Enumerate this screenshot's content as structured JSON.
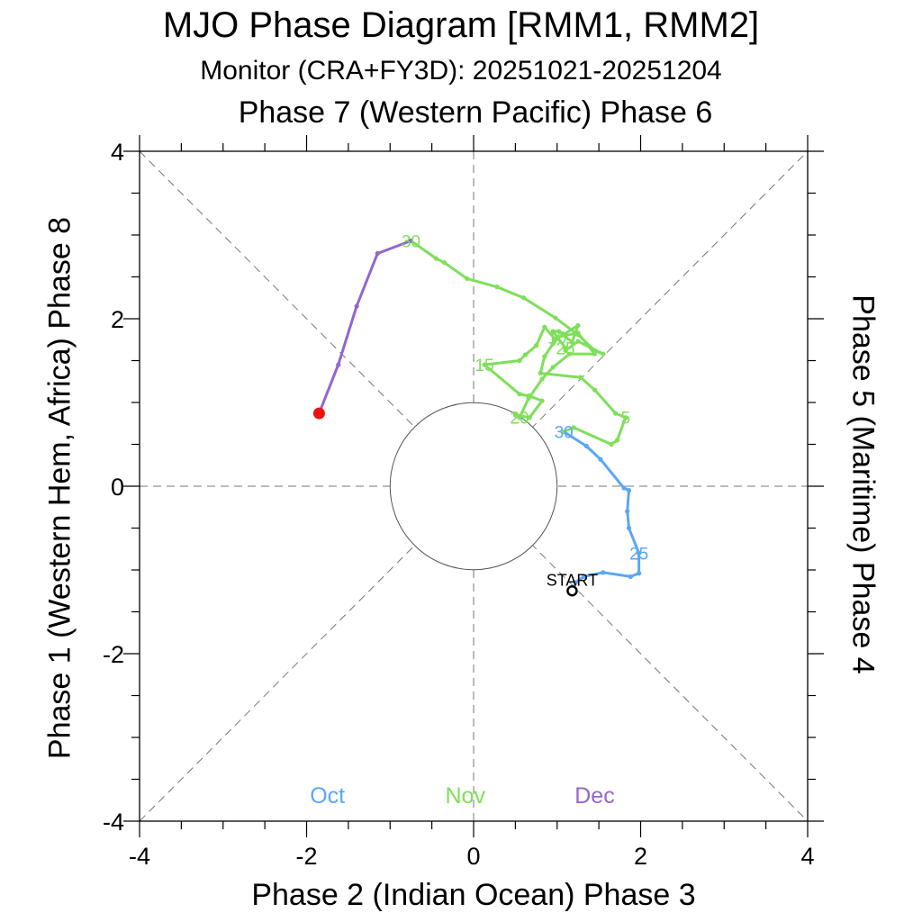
{
  "chart_data": {
    "type": "line",
    "title": "MJO Phase Diagram [RMM1, RMM2]",
    "subtitle": "Monitor (CRA+FY3D): 20251021-20251204",
    "top_label": "Phase 7 (Western Pacific) Phase 6",
    "xlabel": "Phase 2 (Indian Ocean) Phase 3",
    "ylabel_left": "Phase 1 (Western Hem, Africa) Phase 8",
    "ylabel_right": "Phase 5 (Maritime) Phase 4",
    "xlim": [
      -4,
      4
    ],
    "ylim": [
      -4,
      4
    ],
    "xticks": [
      -4,
      -2,
      0,
      2,
      4
    ],
    "yticks": [
      -4,
      -2,
      0,
      2,
      4
    ],
    "xtick_labels": [
      "-4",
      "-2",
      "0",
      "2",
      "4"
    ],
    "ytick_labels": [
      "-4",
      "-2",
      "0",
      "2",
      "4"
    ],
    "unit_circle_radius": 1,
    "start_label": "START",
    "colors": {
      "Oct": "#5aa7f5",
      "Nov": "#7fdf5a",
      "Dec": "#9266cf",
      "end_marker": "#ee1111",
      "axes": "#000000",
      "guides": "#777777"
    },
    "series": [
      {
        "name": "Oct",
        "x": [
          1.18,
          1.22,
          1.32,
          1.55,
          1.88,
          1.98,
          1.98,
          1.86,
          1.84,
          1.86,
          1.8,
          1.52,
          1.35,
          1.08
        ],
        "y": [
          -1.25,
          -1.15,
          -1.08,
          -1.03,
          -1.08,
          -1.04,
          -0.8,
          -0.5,
          -0.3,
          -0.05,
          -0.02,
          0.32,
          0.48,
          0.65
        ],
        "labels": [
          {
            "text": "25",
            "index": 6
          },
          {
            "text": "30",
            "index": 13
          }
        ]
      },
      {
        "name": "Nov",
        "x": [
          1.08,
          1.2,
          1.65,
          1.72,
          1.82,
          1.7,
          1.45,
          1.28,
          0.8,
          0.85,
          0.95,
          1.0,
          1.25,
          1.45,
          1.15,
          0.95,
          0.82,
          0.66,
          0.55,
          0.5,
          0.67,
          0.82,
          0.66,
          0.55,
          0.13,
          0.55,
          0.62,
          0.75,
          0.85,
          0.98,
          1.25,
          1.18,
          1.02,
          0.95,
          1.1,
          1.1,
          1.25,
          1.55,
          1.45,
          1.25,
          0.98,
          0.6,
          0.28,
          -0.08,
          -0.35,
          -0.45,
          -0.75
        ],
        "y": [
          0.65,
          0.7,
          0.5,
          0.55,
          0.82,
          0.87,
          1.15,
          1.3,
          1.35,
          1.55,
          1.7,
          1.78,
          1.83,
          1.58,
          1.58,
          1.42,
          1.28,
          1.05,
          0.82,
          0.85,
          0.82,
          1.02,
          1.08,
          1.1,
          1.45,
          1.5,
          1.57,
          1.68,
          1.9,
          1.75,
          1.92,
          1.72,
          1.85,
          1.85,
          1.65,
          1.62,
          1.73,
          1.58,
          1.62,
          1.81,
          2.01,
          2.25,
          2.38,
          2.48,
          2.67,
          2.72,
          2.93
        ],
        "labels": [
          {
            "text": "5",
            "index": 4
          },
          {
            "text": "10",
            "index": 11
          },
          {
            "text": "15",
            "index": 24
          },
          {
            "text": "20",
            "index": 18
          },
          {
            "text": "25",
            "index": 34
          },
          {
            "text": "30",
            "index": 46
          }
        ]
      },
      {
        "name": "Dec",
        "x": [
          -0.75,
          -1.15,
          -1.4,
          -1.62,
          -1.85
        ],
        "y": [
          2.93,
          2.78,
          2.15,
          1.45,
          0.87
        ],
        "labels": []
      }
    ],
    "start": {
      "x": 1.18,
      "y": -1.25
    },
    "end": {
      "x": -1.85,
      "y": 0.87
    },
    "legend": [
      {
        "text": "Oct",
        "color": "#5aa7f5"
      },
      {
        "text": "Nov",
        "color": "#7fdf5a"
      },
      {
        "text": "Dec",
        "color": "#9266cf"
      }
    ]
  }
}
